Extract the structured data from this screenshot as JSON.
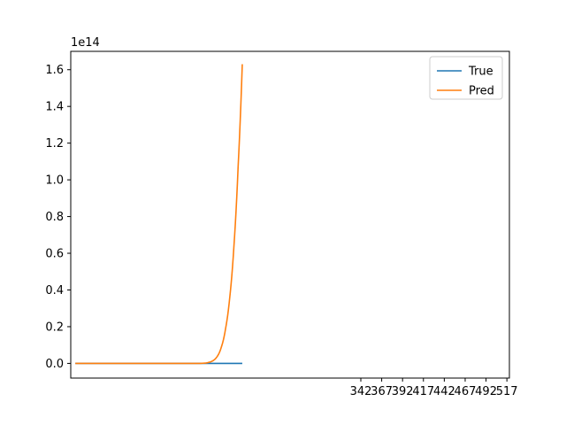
{
  "chart_data": {
    "type": "line",
    "title": "",
    "xlabel": "",
    "ylabel": "",
    "y_offset_text": "1e14",
    "y_scale_factor": 100000000000000.0,
    "ylim": [
      -0.08,
      1.7
    ],
    "xlim": [
      -5.5,
      520
    ],
    "yticks": [
      0.0,
      0.2,
      0.4,
      0.6,
      0.8,
      1.0,
      1.2,
      1.4,
      1.6
    ],
    "ytick_labels": [
      "0.0",
      "0.2",
      "0.4",
      "0.6",
      "0.8",
      "1.0",
      "1.2",
      "1.4",
      "1.6"
    ],
    "xticks": [
      342,
      367,
      392,
      417,
      442,
      467,
      492,
      517
    ],
    "xtick_labels": [
      "342",
      "367",
      "392",
      "417",
      "442",
      "467",
      "492",
      "517"
    ],
    "grid": false,
    "legend_position": "top-right",
    "series": [
      {
        "name": "True",
        "color": "#1f77b4",
        "x": [
          0,
          50,
          100,
          150,
          200
        ],
        "y": [
          0,
          0,
          0,
          0,
          0
        ]
      },
      {
        "name": "Pred",
        "color": "#ff7f0e",
        "growth_start_x": 150,
        "x": [
          0,
          50,
          100,
          150,
          155,
          160,
          165,
          170,
          175,
          180,
          185,
          190,
          195,
          200
        ],
        "y": [
          0,
          0,
          0,
          0.0,
          0.0015,
          0.006,
          0.015,
          0.038,
          0.09,
          0.19,
          0.36,
          0.64,
          1.07,
          1.63
        ]
      }
    ]
  }
}
